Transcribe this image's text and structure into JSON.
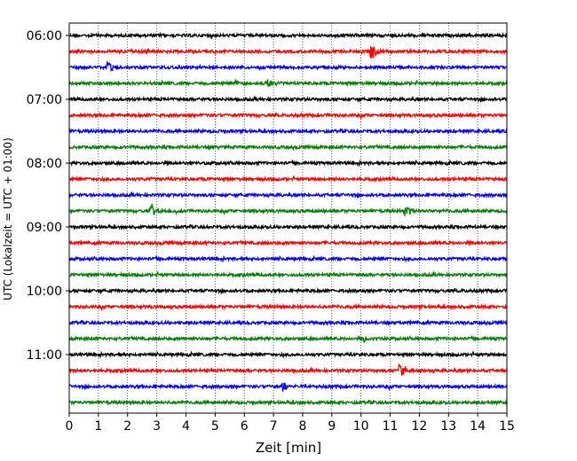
{
  "chart_data": {
    "type": "line",
    "title": "",
    "xlabel": "Zeit  [min]",
    "ylabel": "UTC (Lokalzeit = UTC + 01:00)",
    "xlim": [
      0,
      15
    ],
    "x_ticks": [
      "0",
      "1",
      "2",
      "3",
      "4",
      "5",
      "6",
      "7",
      "8",
      "9",
      "10",
      "11",
      "12",
      "13",
      "14",
      "15"
    ],
    "y_ticks": [
      "06:00",
      "07:00",
      "08:00",
      "09:00",
      "10:00",
      "11:00"
    ],
    "grid": "vertical dotted",
    "trace_interval_min": 15,
    "trace_color_cycle": [
      "#000000",
      "#ff0000",
      "#0000ff",
      "#008000"
    ],
    "traces": [
      {
        "start": "06:00",
        "color": "#000000",
        "events": []
      },
      {
        "start": "06:15",
        "color": "#ff0000",
        "events": [
          {
            "t": 10.3,
            "amp": 1.0
          }
        ]
      },
      {
        "start": "06:30",
        "color": "#0000ff",
        "events": [
          {
            "t": 1.3,
            "amp": 0.55
          }
        ]
      },
      {
        "start": "06:45",
        "color": "#008000",
        "events": [
          {
            "t": 5.7,
            "amp": 0.35
          },
          {
            "t": 6.8,
            "amp": 0.45
          }
        ]
      },
      {
        "start": "07:00",
        "color": "#000000",
        "events": []
      },
      {
        "start": "07:15",
        "color": "#ff0000",
        "events": []
      },
      {
        "start": "07:30",
        "color": "#0000ff",
        "events": []
      },
      {
        "start": "07:45",
        "color": "#008000",
        "events": [
          {
            "t": 4.9,
            "amp": 0.25
          }
        ]
      },
      {
        "start": "08:00",
        "color": "#000000",
        "events": []
      },
      {
        "start": "08:15",
        "color": "#ff0000",
        "events": []
      },
      {
        "start": "08:30",
        "color": "#0000ff",
        "events": []
      },
      {
        "start": "08:45",
        "color": "#008000",
        "events": [
          {
            "t": 2.8,
            "amp": 0.6
          },
          {
            "t": 11.5,
            "amp": 0.65
          }
        ]
      },
      {
        "start": "09:00",
        "color": "#000000",
        "events": []
      },
      {
        "start": "09:15",
        "color": "#ff0000",
        "events": []
      },
      {
        "start": "09:30",
        "color": "#0000ff",
        "events": []
      },
      {
        "start": "09:45",
        "color": "#008000",
        "events": []
      },
      {
        "start": "10:00",
        "color": "#000000",
        "events": []
      },
      {
        "start": "10:15",
        "color": "#ff0000",
        "events": []
      },
      {
        "start": "10:30",
        "color": "#0000ff",
        "events": []
      },
      {
        "start": "10:45",
        "color": "#008000",
        "events": [
          {
            "t": 10.1,
            "amp": 0.45
          }
        ]
      },
      {
        "start": "11:00",
        "color": "#000000",
        "events": []
      },
      {
        "start": "11:15",
        "color": "#ff0000",
        "events": [
          {
            "t": 11.3,
            "amp": 0.9
          }
        ]
      },
      {
        "start": "11:30",
        "color": "#0000ff",
        "events": [
          {
            "t": 7.3,
            "amp": 0.5
          }
        ]
      },
      {
        "start": "11:45",
        "color": "#008000",
        "events": []
      }
    ]
  }
}
